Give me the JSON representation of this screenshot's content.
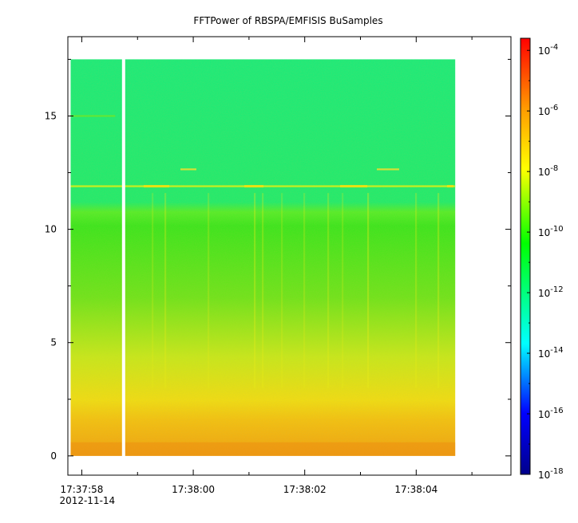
{
  "chart_data": {
    "type": "heatmap",
    "title": "FFTPower of RBSPA/EMFISIS  BuSamples",
    "xlabel": "",
    "ylabel": "",
    "x_ticks": [
      {
        "t": 0,
        "label": "17:37:58"
      },
      {
        "t": 2,
        "label": "17:38:00"
      },
      {
        "t": 4,
        "label": "17:38:02"
      },
      {
        "t": 6,
        "label": "17:38:04"
      }
    ],
    "x_minor_ticks": [
      1,
      3,
      5,
      7
    ],
    "x_date_label": "2012-11-14",
    "xlim_seconds_from_173758": [
      -0.25,
      7.7
    ],
    "data_x_extent_seconds_from_173758": [
      -0.2,
      6.7
    ],
    "data_gap_seconds_from_173758": 0.75,
    "ylim": [
      -0.85,
      18.5
    ],
    "y_ticks": [
      0,
      5,
      10,
      15
    ],
    "y_minor_ticks": [
      2.5,
      7.5,
      12.5,
      17.5
    ],
    "data_y_extent": [
      0,
      17.5
    ],
    "colorbar": {
      "scale": "log",
      "range_exponent": [
        -18,
        -3.6
      ],
      "ticks": [
        {
          "exp": -4,
          "base": "10",
          "sup": "-4"
        },
        {
          "exp": -6,
          "base": "10",
          "sup": "-6"
        },
        {
          "exp": -8,
          "base": "10",
          "sup": "-8"
        },
        {
          "exp": -10,
          "base": "10",
          "sup": "-10"
        },
        {
          "exp": -12,
          "base": "10",
          "sup": "-12"
        },
        {
          "exp": -14,
          "base": "10",
          "sup": "-14"
        },
        {
          "exp": -16,
          "base": "10",
          "sup": "-16"
        },
        {
          "exp": -18,
          "base": "10",
          "sup": "-18"
        }
      ],
      "colormap": [
        "#00008b",
        "#0000ff",
        "#00ffff",
        "#00ff00",
        "#ffff00",
        "#ff8000",
        "#ff0000"
      ]
    },
    "power_profile_log10_by_frequency": [
      {
        "y": 0.0,
        "value": -7.2
      },
      {
        "y": 1.0,
        "value": -7.4
      },
      {
        "y": 1.8,
        "value": -7.9
      },
      {
        "y": 3.0,
        "value": -8.5
      },
      {
        "y": 5.0,
        "value": -9.0
      },
      {
        "y": 7.0,
        "value": -9.6
      },
      {
        "y": 9.0,
        "value": -10.1
      },
      {
        "y": 11.0,
        "value": -10.5
      },
      {
        "y": 11.9,
        "value": -9.0
      },
      {
        "y": 12.2,
        "value": -10.8
      },
      {
        "y": 12.6,
        "value": -11.6
      },
      {
        "y": 13.0,
        "value": -12.4
      },
      {
        "y": 17.5,
        "value": -12.6
      }
    ],
    "grid": false,
    "legend": "colorbar-right"
  }
}
